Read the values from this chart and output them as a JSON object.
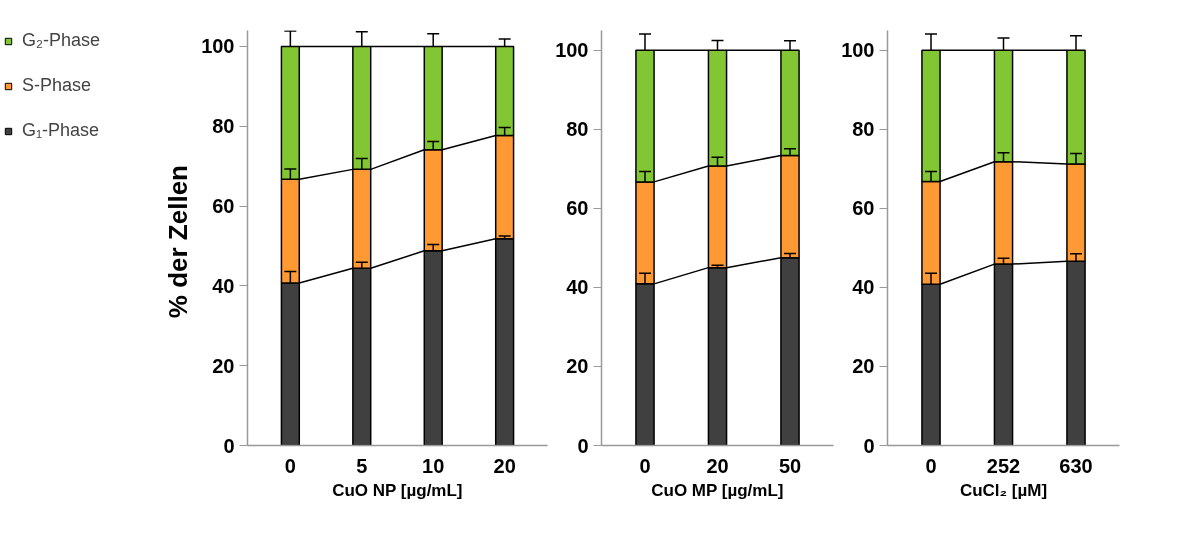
{
  "chart_data": [
    {
      "type": "bar",
      "stacked": true,
      "categories": [
        "0",
        "5",
        "10",
        "20"
      ],
      "xlabel": "CuO NP [µg/mL]",
      "ylabel": "% der  Zellen",
      "ylim": [
        0,
        104
      ],
      "yticks": [
        0,
        20,
        40,
        60,
        80,
        100
      ],
      "grid": false,
      "legend": "left",
      "series": [
        {
          "name": "G₁-Phase",
          "color": "#404040",
          "values": [
            40.7,
            44.4,
            48.8,
            51.8
          ],
          "errors": [
            [
              40.7,
              43.6
            ],
            [
              44.4,
              45.9
            ],
            [
              48.8,
              50.4
            ],
            [
              51.8,
              52.5
            ]
          ]
        },
        {
          "name": "S-Phase",
          "color": "#ff9933",
          "values": [
            26.0,
            24.8,
            25.3,
            25.9
          ],
          "errors": [
            [
              66.7,
              69.3
            ],
            [
              69.2,
              71.9
            ],
            [
              74.1,
              76.2
            ],
            [
              77.7,
              79.7
            ]
          ]
        },
        {
          "name": "G₂-Phase",
          "color": "#83c633",
          "values": [
            33.3,
            30.8,
            25.9,
            22.3
          ],
          "errors": [
            [
              100,
              103.9
            ],
            [
              100,
              103.7
            ],
            [
              100,
              103.2
            ],
            [
              100,
              101.9
            ]
          ]
        }
      ]
    },
    {
      "type": "bar",
      "stacked": true,
      "categories": [
        "0",
        "20",
        "50"
      ],
      "xlabel": "CuO MP [µg/mL]",
      "ylim": [
        0,
        105
      ],
      "yticks": [
        0,
        20,
        40,
        60,
        80,
        100
      ],
      "grid": false,
      "series": [
        {
          "color": "#404040",
          "values": [
            40.9,
            45.0,
            47.5
          ],
          "errors": [
            [
              40.9,
              43.6
            ],
            [
              45.0,
              45.6
            ],
            [
              47.5,
              48.6
            ]
          ]
        },
        {
          "color": "#ff9933",
          "values": [
            25.8,
            25.7,
            25.9
          ],
          "errors": [
            [
              66.7,
              69.3
            ],
            [
              70.7,
              72.9
            ],
            [
              73.4,
              75.1
            ]
          ]
        },
        {
          "color": "#83c633",
          "values": [
            33.3,
            29.3,
            26.6
          ],
          "errors": [
            [
              100,
              104.1
            ],
            [
              100,
              102.5
            ],
            [
              100,
              102.4
            ]
          ]
        }
      ]
    },
    {
      "type": "bar",
      "stacked": true,
      "categories": [
        "0",
        "252",
        "630"
      ],
      "xlabel": "CuCl₂ [µM]",
      "ylim": [
        0,
        105
      ],
      "yticks": [
        0,
        20,
        40,
        60,
        80,
        100
      ],
      "grid": false,
      "series": [
        {
          "color": "#404040",
          "values": [
            40.8,
            45.9,
            46.6
          ],
          "errors": [
            [
              40.8,
              43.6
            ],
            [
              45.9,
              47.4
            ],
            [
              46.6,
              48.5
            ]
          ]
        },
        {
          "color": "#ff9933",
          "values": [
            26.0,
            25.9,
            24.6
          ],
          "errors": [
            [
              66.8,
              69.3
            ],
            [
              71.8,
              74.1
            ],
            [
              71.2,
              73.9
            ]
          ]
        },
        {
          "color": "#83c633",
          "values": [
            33.2,
            28.2,
            28.8
          ],
          "errors": [
            [
              100,
              104.1
            ],
            [
              100,
              103.1
            ],
            [
              100,
              103.7
            ]
          ]
        }
      ]
    }
  ]
}
